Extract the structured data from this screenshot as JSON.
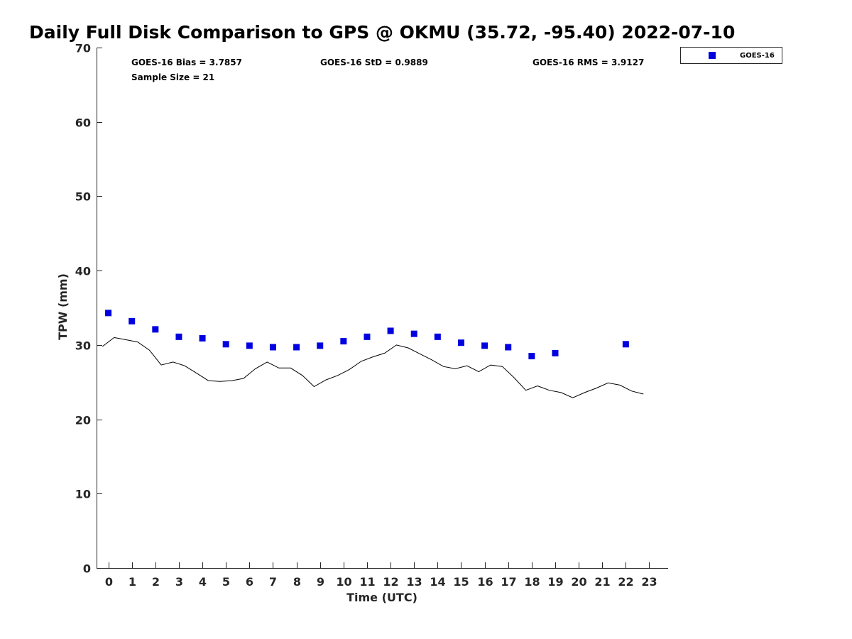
{
  "chart_data": {
    "type": "scatter",
    "title": "Daily Full Disk Comparison to GPS @ OKMU (35.72, -95.40) 2022-07-10",
    "xlabel": "Time (UTC)",
    "ylabel": "TPW (mm)",
    "xlim": [
      -0.5,
      23.8
    ],
    "ylim": [
      0,
      70
    ],
    "x_ticks": [
      0,
      1,
      2,
      3,
      4,
      5,
      6,
      7,
      8,
      9,
      10,
      11,
      12,
      13,
      14,
      15,
      16,
      17,
      18,
      19,
      20,
      21,
      22,
      23
    ],
    "y_ticks": [
      0,
      10,
      20,
      30,
      40,
      50,
      60,
      70
    ],
    "grid": false,
    "legend_position": "top-right",
    "stats": {
      "bias": "GOES-16 Bias = 3.7857",
      "std": "GOES-16 StD = 0.9889",
      "rms": "GOES-16 RMS = 3.9127",
      "sample_size": "Sample Size = 21"
    },
    "series": [
      {
        "name": "GOES-16",
        "kind": "markers",
        "marker": "square",
        "color": "#0000e0",
        "x": [
          0,
          1,
          2,
          3,
          4,
          5,
          6,
          7,
          8,
          9,
          10,
          11,
          12,
          13,
          14,
          15,
          16,
          17,
          18,
          19,
          22
        ],
        "y": [
          34.3,
          33.2,
          32.1,
          31.1,
          30.9,
          30.1,
          29.9,
          29.7,
          29.7,
          29.9,
          30.5,
          31.1,
          31.9,
          31.5,
          31.1,
          30.3,
          29.9,
          29.7,
          28.5,
          28.9,
          30.1
        ]
      },
      {
        "kind": "line",
        "color": "#000000",
        "x": [
          -0.25,
          0.25,
          0.75,
          1.25,
          1.75,
          2.25,
          2.75,
          3.25,
          3.75,
          4.25,
          4.75,
          5.25,
          5.75,
          6.25,
          6.75,
          7.25,
          7.75,
          8.25,
          8.75,
          9.25,
          9.75,
          10.25,
          10.75,
          11.25,
          11.75,
          12.25,
          12.75,
          13.25,
          13.75,
          14.25,
          14.75,
          15.25,
          15.75,
          16.25,
          16.75,
          17.25,
          17.75,
          18.25,
          18.75,
          19.25,
          19.75,
          20.25,
          20.75,
          21.25,
          21.75,
          22.25,
          22.75
        ],
        "y": [
          29.8,
          31.0,
          30.7,
          30.4,
          29.3,
          27.3,
          27.7,
          27.2,
          26.2,
          25.2,
          25.1,
          25.2,
          25.5,
          26.8,
          27.7,
          26.9,
          26.9,
          25.9,
          24.4,
          25.3,
          25.9,
          26.7,
          27.8,
          28.4,
          28.9,
          30.0,
          29.6,
          28.8,
          28.0,
          27.1,
          26.8,
          27.2,
          26.4,
          27.3,
          27.1,
          25.6,
          23.9,
          24.5,
          23.9,
          23.6,
          22.9,
          23.6,
          24.2,
          24.9,
          24.6,
          23.8,
          23.4
        ]
      }
    ]
  }
}
